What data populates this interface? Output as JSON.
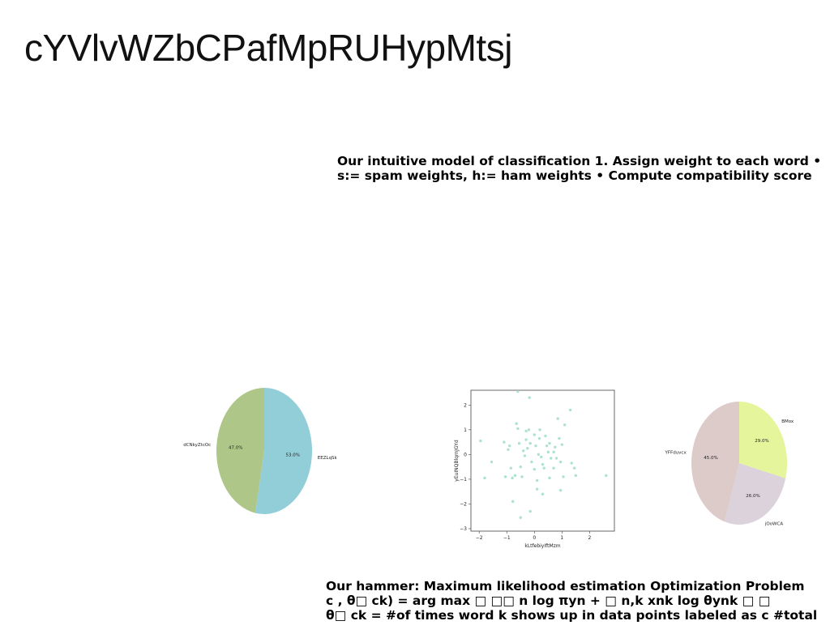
{
  "slide": {
    "title": "cYVlvWZbCPafMpRUHypMtsj",
    "top_text": [
      "Our intuitive model of classification 1. Assign weight to each word •",
      "s:= spam weights, h:= ham weights • Compute compatibility score"
    ],
    "bottom_text": [
      "Our hammer: Maximum likelihood estimation Optimization Problem",
      "c , θ□ ck) = arg max □ □□ n log πyn + □ n,k xnk log θynk □ □",
      "θ□ ck = #of times word k shows up in data points labeled as c #total"
    ]
  },
  "chart_data": [
    {
      "type": "pie",
      "labels": [
        "EEZLqSk",
        "dCNkyZtcOc"
      ],
      "values": [
        53.0,
        47.0
      ],
      "value_labels": [
        "53.0%",
        "47.0%"
      ],
      "colors": [
        "#92ced8",
        "#aec788"
      ]
    },
    {
      "type": "scatter",
      "xlabel": "kLtfebiyIftMzm",
      "ylabel": "yEuINQBlqrnJGYd",
      "xlim": [
        -2.3,
        2.9
      ],
      "ylim": [
        -3.1,
        2.6
      ],
      "xticks": [
        -2,
        -1,
        0,
        1,
        2
      ],
      "yticks": [
        -3,
        -2,
        -1,
        0,
        1,
        2
      ],
      "color": "#9fdcc8",
      "points": [
        [
          -1.95,
          0.55
        ],
        [
          -1.8,
          -0.95
        ],
        [
          -1.55,
          -0.3
        ],
        [
          -1.1,
          0.5
        ],
        [
          -1.05,
          -0.9
        ],
        [
          -0.95,
          0.2
        ],
        [
          -0.9,
          0.35
        ],
        [
          -0.8,
          -0.95
        ],
        [
          -0.78,
          -1.9
        ],
        [
          -0.7,
          -0.85
        ],
        [
          -0.65,
          1.25
        ],
        [
          -0.6,
          2.55
        ],
        [
          -0.6,
          1.05
        ],
        [
          -0.55,
          0.45
        ],
        [
          -0.5,
          -0.5
        ],
        [
          -0.45,
          -0.9
        ],
        [
          -0.4,
          0.15
        ],
        [
          -0.35,
          -0.05
        ],
        [
          -0.3,
          0.6
        ],
        [
          -0.25,
          0.25
        ],
        [
          -0.2,
          1.0
        ],
        [
          -0.18,
          2.3
        ],
        [
          -0.15,
          -2.3
        ],
        [
          -0.15,
          0.45
        ],
        [
          -0.1,
          -0.3
        ],
        [
          0.0,
          -0.6
        ],
        [
          0.0,
          0.8
        ],
        [
          0.05,
          0.35
        ],
        [
          0.1,
          -1.05
        ],
        [
          0.1,
          -1.4
        ],
        [
          0.15,
          0.0
        ],
        [
          0.18,
          0.65
        ],
        [
          0.2,
          1.0
        ],
        [
          0.25,
          -0.1
        ],
        [
          0.3,
          -0.4
        ],
        [
          0.35,
          -0.55
        ],
        [
          0.4,
          0.75
        ],
        [
          0.45,
          0.35
        ],
        [
          0.5,
          0.1
        ],
        [
          0.55,
          0.45
        ],
        [
          0.6,
          -0.15
        ],
        [
          0.7,
          -0.55
        ],
        [
          0.75,
          0.3
        ],
        [
          0.8,
          -0.15
        ],
        [
          0.85,
          1.45
        ],
        [
          0.9,
          0.65
        ],
        [
          0.95,
          -0.3
        ],
        [
          1.0,
          0.4
        ],
        [
          1.05,
          -0.9
        ],
        [
          1.1,
          1.2
        ],
        [
          1.3,
          1.8
        ],
        [
          1.35,
          -0.35
        ],
        [
          1.45,
          -0.55
        ],
        [
          1.5,
          -0.85
        ],
        [
          2.6,
          -0.85
        ],
        [
          -0.5,
          -2.55
        ],
        [
          0.3,
          -1.6
        ],
        [
          -0.3,
          0.95
        ],
        [
          0.7,
          0.1
        ],
        [
          -0.85,
          -0.55
        ],
        [
          0.95,
          -1.45
        ],
        [
          0.55,
          -0.95
        ]
      ]
    },
    {
      "type": "pie",
      "labels": [
        "BMox",
        "jOoWCA",
        "YFFduvcx"
      ],
      "values": [
        29.0,
        26.0,
        45.0
      ],
      "value_labels": [
        "29.0%",
        "26.0%",
        "45.0%"
      ],
      "colors": [
        "#e4f59b",
        "#dcd2dc",
        "#dccbc9"
      ]
    }
  ]
}
